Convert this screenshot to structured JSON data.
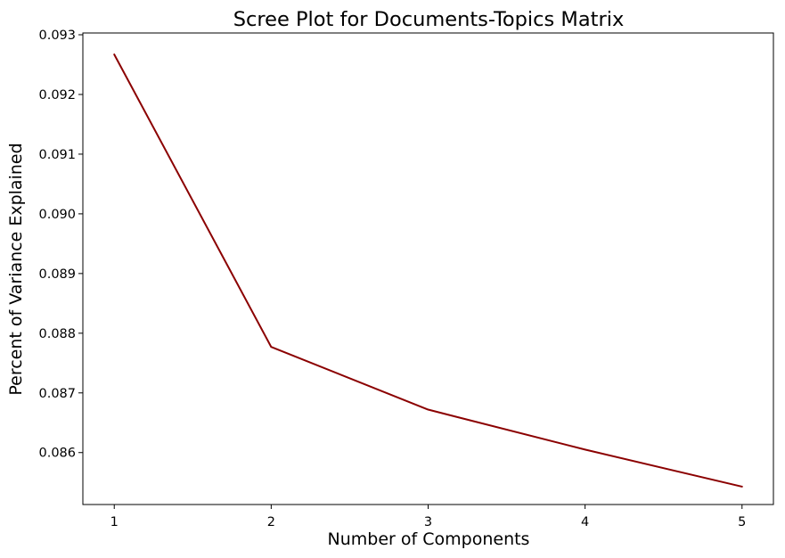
{
  "chart_data": {
    "type": "line",
    "title": "Scree Plot for Documents-Topics Matrix",
    "xlabel": "Number of Components",
    "ylabel": "Percent of Variance Explained",
    "x": [
      1,
      2,
      3,
      4,
      5
    ],
    "series": [
      {
        "values": [
          0.09267,
          0.08777,
          0.08672,
          0.08605,
          0.08543
        ],
        "color": "#8b0000"
      }
    ],
    "xlim": [
      0.8,
      5.2
    ],
    "ylim": [
      0.08513,
      0.09303
    ],
    "xticks": [
      1,
      2,
      3,
      4,
      5
    ],
    "xtick_labels": [
      "1",
      "2",
      "3",
      "4",
      "5"
    ],
    "yticks": [
      0.086,
      0.087,
      0.088,
      0.089,
      0.09,
      0.091,
      0.092,
      0.093
    ],
    "ytick_labels": [
      "0.086",
      "0.087",
      "0.088",
      "0.089",
      "0.090",
      "0.091",
      "0.092",
      "0.093"
    ],
    "grid": false,
    "legend": "none"
  }
}
